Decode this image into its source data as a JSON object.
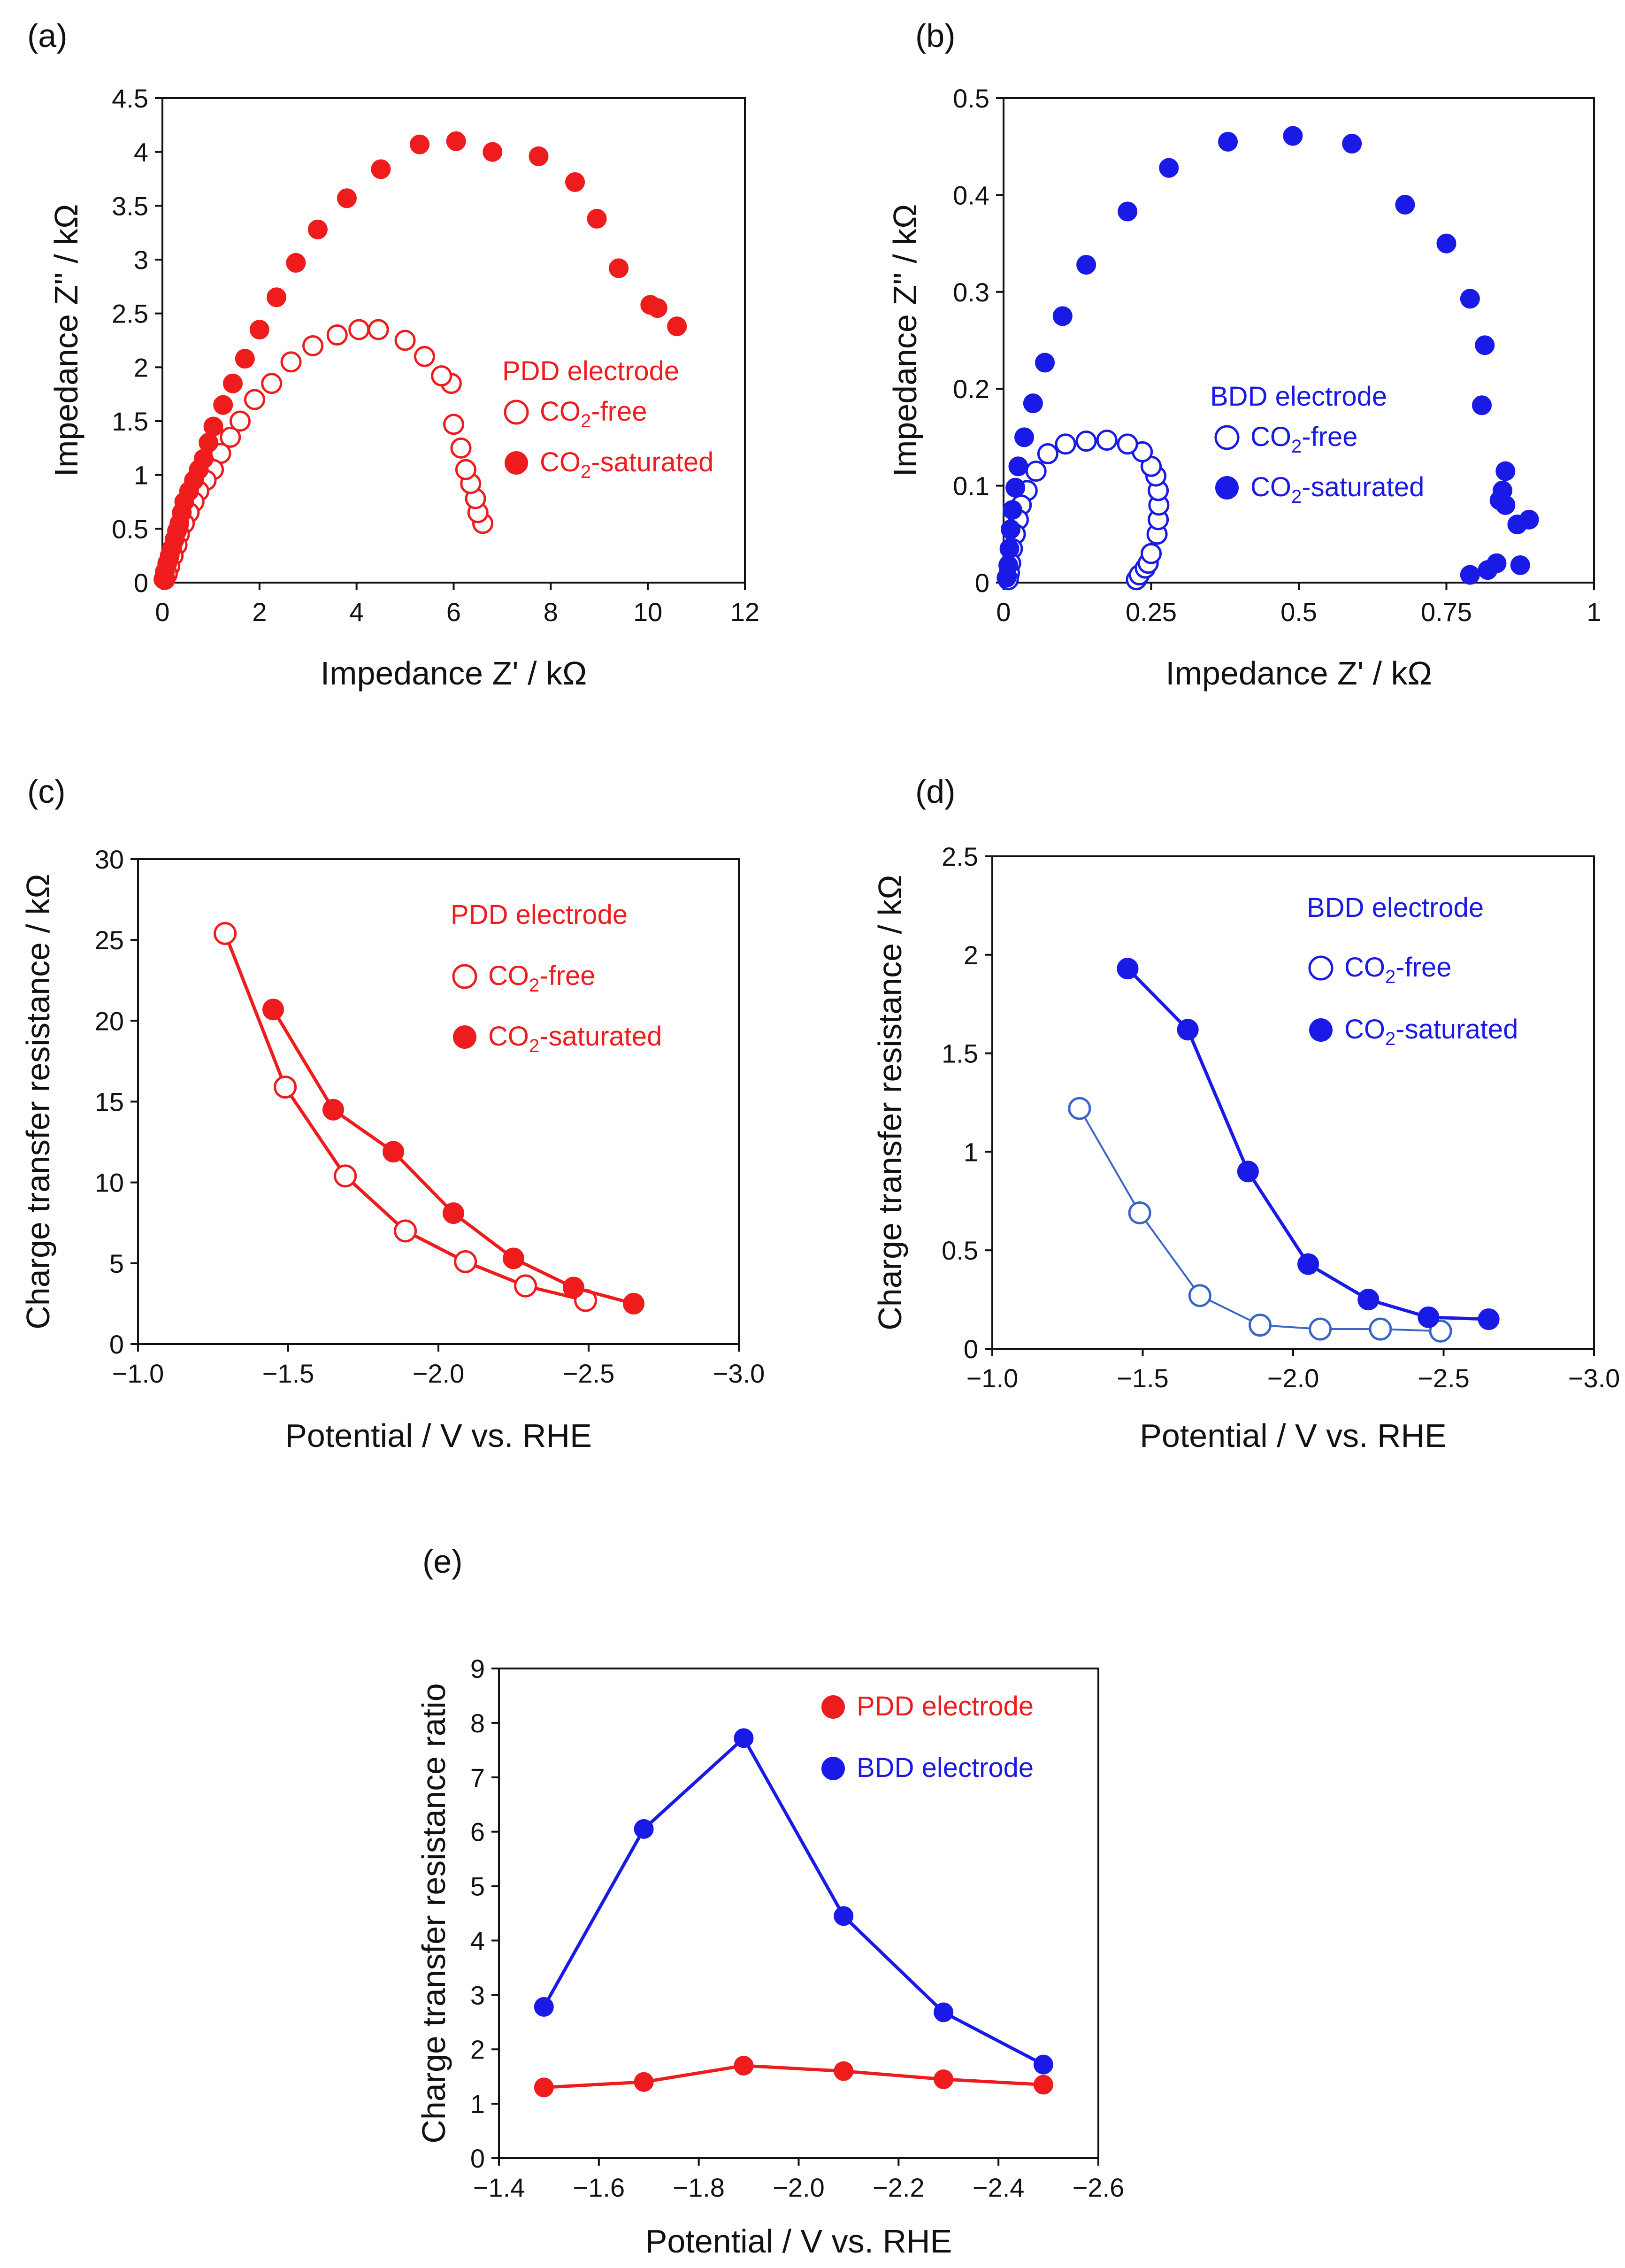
{
  "colors": {
    "pdd": "#ee1c1c",
    "bdd": "#1a1ae6",
    "bdd_thin": "#3a66c8"
  },
  "chart_data": [
    {
      "panel": "(a)",
      "type": "scatter",
      "title": "",
      "xlabel": "Impedance Z' / kΩ",
      "ylabel": "Impedance Z'' / kΩ",
      "xlim": [
        0,
        12
      ],
      "ylim": [
        0,
        4.5
      ],
      "xticks": [
        "0",
        "2",
        "4",
        "6",
        "8",
        "10",
        "12"
      ],
      "yticks": [
        "0",
        "0.5",
        "1",
        "1.5",
        "2",
        "2.5",
        "3",
        "3.5",
        "4",
        "4.5"
      ],
      "legend_title": "PDD electrode",
      "series": [
        {
          "name": "CO₂-free",
          "sub_main": "CO",
          "sub": "2",
          "sub_tail": "-free",
          "marker": "open",
          "color": "pdd",
          "x": [
            6.6,
            6.5,
            6.45,
            6.35,
            6.25,
            6.15,
            6.0,
            5.95,
            5.75,
            5.4,
            5.0,
            4.45,
            4.05,
            3.6,
            3.1,
            2.65,
            2.25,
            1.9,
            1.6,
            1.4,
            1.2,
            1.05,
            0.9,
            0.75,
            0.65,
            0.55,
            0.45,
            0.35,
            0.3,
            0.22,
            0.15,
            0.1,
            0.05
          ],
          "y": [
            0.55,
            0.65,
            0.78,
            0.92,
            1.05,
            1.25,
            1.47,
            1.85,
            1.92,
            2.1,
            2.25,
            2.35,
            2.35,
            2.3,
            2.2,
            2.05,
            1.85,
            1.7,
            1.5,
            1.35,
            1.2,
            1.05,
            0.95,
            0.85,
            0.75,
            0.65,
            0.55,
            0.45,
            0.35,
            0.25,
            0.15,
            0.08,
            0.03
          ]
        },
        {
          "name": "CO₂-saturated",
          "sub_main": "CO",
          "sub": "2",
          "sub_tail": "-saturated",
          "marker": "filled",
          "color": "pdd",
          "x": [
            10.6,
            10.2,
            10.05,
            9.4,
            8.95,
            8.5,
            7.75,
            6.8,
            6.05,
            5.3,
            4.5,
            3.8,
            3.2,
            2.75,
            2.35,
            2.0,
            1.7,
            1.45,
            1.25,
            1.05,
            0.95,
            0.85,
            0.75,
            0.65,
            0.55,
            0.45,
            0.4,
            0.35,
            0.3,
            0.25,
            0.2,
            0.15,
            0.1,
            0.05,
            0.02
          ],
          "y": [
            2.38,
            2.55,
            2.58,
            2.92,
            3.38,
            3.72,
            3.96,
            4.0,
            4.1,
            4.07,
            3.84,
            3.57,
            3.28,
            2.97,
            2.65,
            2.35,
            2.08,
            1.85,
            1.65,
            1.45,
            1.3,
            1.15,
            1.05,
            0.95,
            0.85,
            0.75,
            0.65,
            0.55,
            0.48,
            0.4,
            0.32,
            0.25,
            0.18,
            0.1,
            0.03
          ]
        }
      ]
    },
    {
      "panel": "(b)",
      "type": "scatter",
      "title": "",
      "xlabel": "Impedance Z' / kΩ",
      "ylabel": "Impedance Z'' / kΩ",
      "xlim": [
        0,
        1
      ],
      "ylim": [
        0,
        0.5
      ],
      "xticks": [
        "0",
        "0.25",
        "0.5",
        "0.75",
        "1"
      ],
      "yticks": [
        "0",
        "0.1",
        "0.2",
        "0.3",
        "0.4",
        "0.5"
      ],
      "legend_title": "BDD electrode",
      "series": [
        {
          "name": "CO₂-free",
          "sub_main": "CO",
          "sub": "2",
          "sub_tail": "-free",
          "marker": "open",
          "color": "bdd",
          "x": [
            0.225,
            0.23,
            0.24,
            0.245,
            0.25,
            0.26,
            0.262,
            0.263,
            0.262,
            0.258,
            0.25,
            0.235,
            0.21,
            0.175,
            0.14,
            0.105,
            0.075,
            0.055,
            0.04,
            0.03,
            0.025,
            0.02,
            0.015,
            0.012,
            0.01,
            0.008
          ],
          "y": [
            0.003,
            0.008,
            0.015,
            0.02,
            0.03,
            0.05,
            0.065,
            0.08,
            0.095,
            0.11,
            0.12,
            0.135,
            0.143,
            0.147,
            0.146,
            0.143,
            0.133,
            0.115,
            0.095,
            0.08,
            0.065,
            0.05,
            0.035,
            0.02,
            0.01,
            0.003
          ]
        },
        {
          "name": "CO₂-saturated",
          "sub_main": "CO",
          "sub": "2",
          "sub_tail": "-saturated",
          "marker": "filled",
          "color": "bdd",
          "x": [
            0.79,
            0.82,
            0.835,
            0.84,
            0.845,
            0.85,
            0.87,
            0.89,
            0.875,
            0.85,
            0.81,
            0.815,
            0.79,
            0.75,
            0.68,
            0.59,
            0.49,
            0.38,
            0.28,
            0.21,
            0.14,
            0.1,
            0.07,
            0.05,
            0.035,
            0.025,
            0.02,
            0.015,
            0.012,
            0.01,
            0.008,
            0.005
          ],
          "y": [
            0.008,
            0.013,
            0.02,
            0.085,
            0.095,
            0.115,
            0.06,
            0.065,
            0.018,
            0.08,
            0.183,
            0.245,
            0.293,
            0.35,
            0.39,
            0.453,
            0.461,
            0.455,
            0.428,
            0.383,
            0.328,
            0.275,
            0.227,
            0.185,
            0.15,
            0.12,
            0.098,
            0.075,
            0.055,
            0.035,
            0.018,
            0.005
          ]
        }
      ]
    },
    {
      "panel": "(c)",
      "type": "line",
      "title": "",
      "xlabel": "Potential / V vs. RHE",
      "ylabel": "Charge transfer resistance / kΩ",
      "xlim": [
        -1.0,
        -3.0
      ],
      "ylim": [
        0,
        30
      ],
      "xticks": [
        "−1.0",
        "−1.5",
        "−2.0",
        "−2.5",
        "−3.0"
      ],
      "yticks": [
        "0",
        "5",
        "10",
        "15",
        "20",
        "25",
        "30"
      ],
      "legend_title": "PDD electrode",
      "series": [
        {
          "name": "CO₂-free",
          "sub_main": "CO",
          "sub": "2",
          "sub_tail": "-free",
          "marker": "open",
          "color": "pdd",
          "x": [
            -1.29,
            -1.49,
            -1.69,
            -1.89,
            -2.09,
            -2.29,
            -2.49
          ],
          "y": [
            25.4,
            15.9,
            10.4,
            7.0,
            5.1,
            3.6,
            2.7
          ]
        },
        {
          "name": "CO₂-saturated",
          "sub_main": "CO",
          "sub": "2",
          "sub_tail": "-saturated",
          "marker": "filled",
          "color": "pdd",
          "x": [
            -1.45,
            -1.65,
            -1.85,
            -2.05,
            -2.25,
            -2.45,
            -2.65
          ],
          "y": [
            20.7,
            14.5,
            11.9,
            8.1,
            5.3,
            3.5,
            2.5
          ]
        }
      ]
    },
    {
      "panel": "(d)",
      "type": "line",
      "title": "",
      "xlabel": "Potential / V vs. RHE",
      "ylabel": "Charge transfer resistance / kΩ",
      "xlim": [
        -1.0,
        -3.0
      ],
      "ylim": [
        0,
        2.5
      ],
      "xticks": [
        "−1.0",
        "−1.5",
        "−2.0",
        "−2.5",
        "−3.0"
      ],
      "yticks": [
        "0",
        "0.5",
        "1",
        "1.5",
        "2",
        "2.5"
      ],
      "legend_title": "BDD electrode",
      "series": [
        {
          "name": "CO₂-free",
          "sub_main": "CO",
          "sub": "2",
          "sub_tail": "-free",
          "marker": "open",
          "color": "bdd_thin",
          "x": [
            -1.29,
            -1.49,
            -1.69,
            -1.89,
            -2.09,
            -2.29,
            -2.49
          ],
          "y": [
            1.22,
            0.69,
            0.27,
            0.12,
            0.1,
            0.1,
            0.09
          ]
        },
        {
          "name": "CO₂-saturated",
          "sub_main": "CO",
          "sub": "2",
          "sub_tail": "-saturated",
          "marker": "filled",
          "color": "bdd",
          "x": [
            -1.45,
            -1.65,
            -1.85,
            -2.05,
            -2.25,
            -2.45,
            -2.65
          ],
          "y": [
            1.93,
            1.62,
            0.9,
            0.43,
            0.25,
            0.16,
            0.15
          ]
        }
      ]
    },
    {
      "panel": "(e)",
      "type": "line",
      "title": "",
      "xlabel": "Potential / V vs. RHE",
      "ylabel": "Charge transfer resistance ratio",
      "xlim": [
        -1.4,
        -2.6
      ],
      "ylim": [
        0,
        9
      ],
      "xticks": [
        "−1.4",
        "−1.6",
        "−1.8",
        "−2.0",
        "−2.2",
        "−2.4",
        "−2.6"
      ],
      "yticks": [
        "0",
        "1",
        "2",
        "3",
        "4",
        "5",
        "6",
        "7",
        "8",
        "9"
      ],
      "legend_title": "",
      "series": [
        {
          "name": "PDD electrode",
          "sub_main": "PDD electrode",
          "sub": "",
          "sub_tail": "",
          "marker": "filled",
          "color": "pdd",
          "x": [
            -1.49,
            -1.69,
            -1.89,
            -2.09,
            -2.29,
            -2.49
          ],
          "y": [
            1.3,
            1.4,
            1.7,
            1.6,
            1.45,
            1.35
          ]
        },
        {
          "name": "BDD electrode",
          "sub_main": "BDD electrode",
          "sub": "",
          "sub_tail": "",
          "marker": "filled",
          "color": "bdd",
          "x": [
            -1.49,
            -1.69,
            -1.89,
            -2.09,
            -2.29,
            -2.49
          ],
          "y": [
            2.78,
            6.05,
            7.72,
            4.45,
            2.68,
            1.72
          ]
        }
      ]
    }
  ]
}
